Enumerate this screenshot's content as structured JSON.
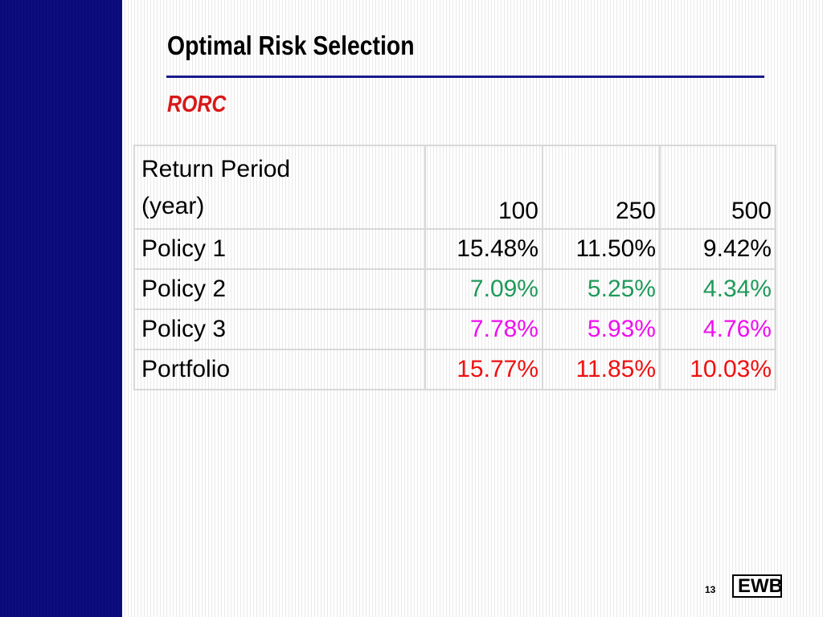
{
  "slide": {
    "title": "Optimal Risk Selection",
    "subtitle": "RORC",
    "page_number": "13",
    "logo_text": "EWB",
    "colors": {
      "sidebar": "#0b0b7a",
      "rule": "#1a1a8c",
      "subtitle": "#d81818"
    }
  },
  "table": {
    "header": {
      "label_line1": "Return Period",
      "label_line2": "(year)",
      "periods": [
        "100",
        "250",
        "500"
      ]
    },
    "rows": [
      {
        "label": "Policy 1",
        "values": [
          "15.48%",
          "11.50%",
          "9.42%"
        ],
        "color": "#000000"
      },
      {
        "label": "Policy 2",
        "values": [
          "7.09%",
          "5.25%",
          "4.34%"
        ],
        "color": "#1f9a5a"
      },
      {
        "label": "Policy 3",
        "values": [
          "7.78%",
          "5.93%",
          "4.76%"
        ],
        "color": "#ee10ee"
      },
      {
        "label": "Portfolio",
        "values": [
          "15.77%",
          "11.85%",
          "10.03%"
        ],
        "color": "#ee1111"
      }
    ]
  }
}
